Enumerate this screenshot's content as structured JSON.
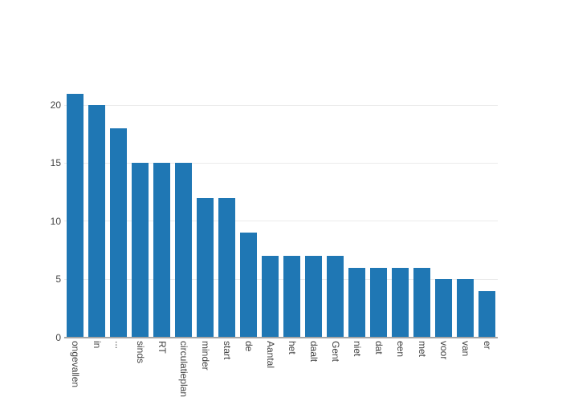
{
  "chart_data": {
    "type": "bar",
    "title": "",
    "xlabel": "",
    "ylabel": "",
    "categories": [
      "ongevallen",
      "in",
      "...",
      "sinds",
      "RT",
      "circulatieplan",
      "minder",
      "start",
      "de",
      "Aantal",
      "het",
      "daalt",
      "Gent",
      "niet",
      "dat",
      "een",
      "met",
      "voor",
      "van",
      "er"
    ],
    "values": [
      21,
      20,
      18,
      15,
      15,
      15,
      12,
      12,
      9,
      7,
      7,
      7,
      7,
      6,
      6,
      6,
      6,
      5,
      5,
      4
    ],
    "yticks": [
      0,
      5,
      10,
      15,
      20
    ],
    "ylim": [
      0,
      21.7
    ],
    "xtick_angle_deg": 90,
    "grid": "horizontal",
    "legend": "none",
    "colors": {
      "bar_fill": "#1f77b4",
      "gridline": "#ebebeb",
      "zeroline": "#a6a6a6",
      "tick_label": "#444444",
      "background": "#ffffff"
    }
  }
}
